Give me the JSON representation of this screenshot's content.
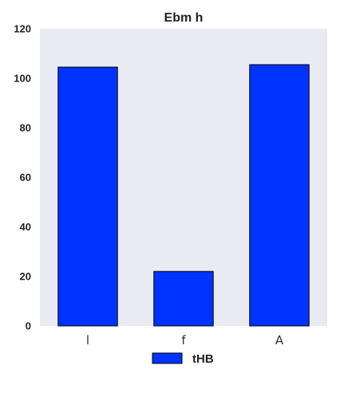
{
  "chart_data": {
    "type": "bar",
    "title": "Ebm h",
    "xlabel": "",
    "ylabel": "",
    "categories": [
      "l",
      "f",
      "A"
    ],
    "series": [
      {
        "name": "tHB",
        "values": [
          104.5,
          22,
          105.5
        ]
      }
    ],
    "ylim": [
      0,
      120
    ],
    "yticks": [
      0,
      20,
      40,
      60,
      80,
      100,
      120
    ],
    "grid": false,
    "legend_position": "bottom-center",
    "colors": {
      "bar_fill": "#0033ff",
      "bar_stroke": "#000000",
      "plot_background": "#eaeaf2",
      "page_background": "#ffffff"
    }
  }
}
